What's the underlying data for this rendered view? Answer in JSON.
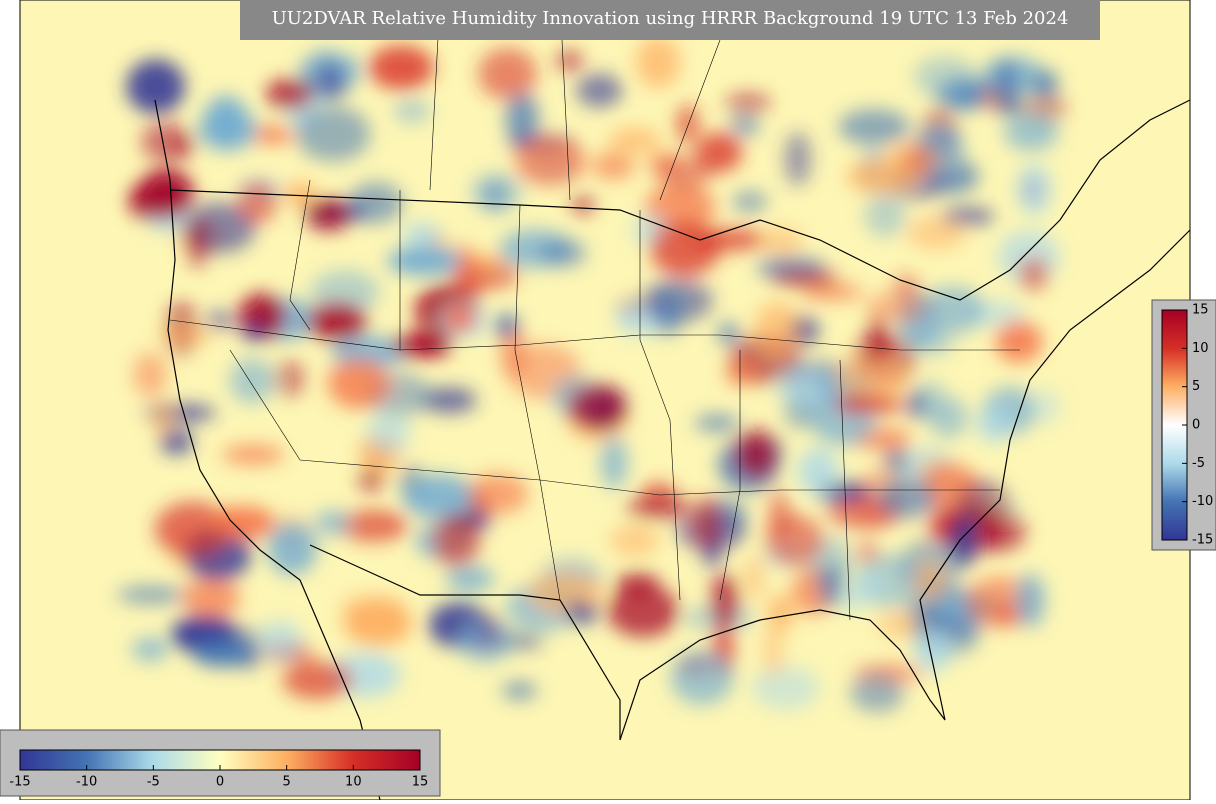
{
  "title": "UU2DVAR Relative Humidity Innovation using HRRR Background 19 UTC 13 Feb 2024",
  "colorbar_right": {
    "range": [
      -15,
      15
    ],
    "ticks": [
      15,
      10,
      5,
      0,
      -5,
      -10,
      -15
    ]
  },
  "colorbar_bottom": {
    "range": [
      -15,
      15
    ],
    "ticks": [
      -15,
      -10,
      -5,
      0,
      5,
      10,
      15
    ]
  }
}
